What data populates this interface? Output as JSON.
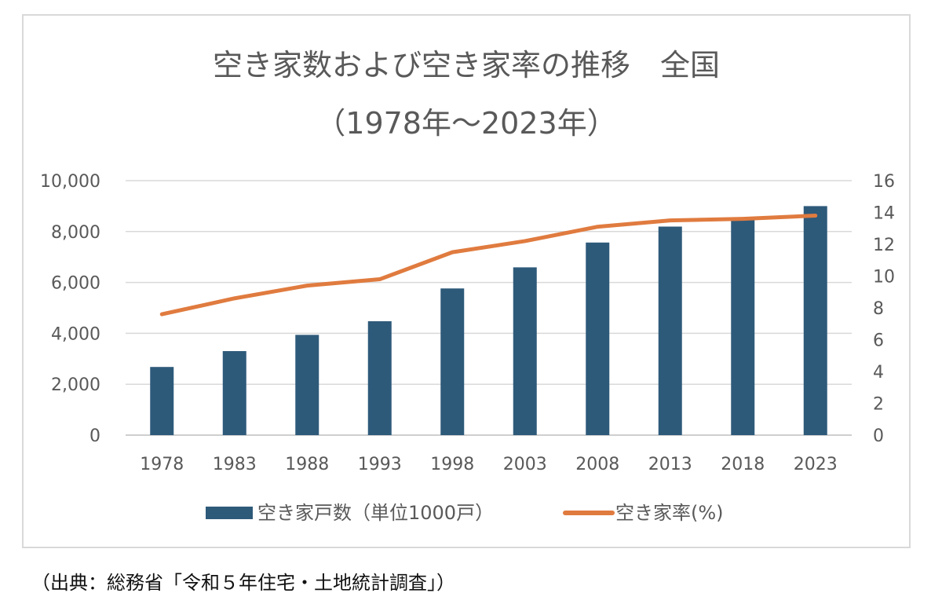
{
  "chart_data": {
    "type": "bar+line",
    "title": "空き家数および空き家率の推移　全国",
    "subtitle": "（1978年～2023年）",
    "categories": [
      "1978",
      "1983",
      "1988",
      "1993",
      "1998",
      "2003",
      "2008",
      "2013",
      "2018",
      "2023"
    ],
    "series": [
      {
        "name": "空き家戸数（単位1000戸）",
        "type": "bar",
        "axis": "left",
        "color": "#2e5a7a",
        "values": [
          2679,
          3302,
          3940,
          4476,
          5764,
          6593,
          7568,
          8195,
          8489,
          9000
        ]
      },
      {
        "name": "空き家率(%)",
        "type": "line",
        "axis": "right",
        "color": "#e07b3f",
        "values": [
          7.6,
          8.6,
          9.4,
          9.8,
          11.5,
          12.2,
          13.1,
          13.5,
          13.6,
          13.8
        ]
      }
    ],
    "y_left": {
      "lim": [
        0,
        10000
      ],
      "ticks": [
        "0",
        "2,000",
        "4,000",
        "6,000",
        "8,000",
        "10,000"
      ]
    },
    "y_right": {
      "lim": [
        0,
        16
      ],
      "ticks": [
        "0",
        "2",
        "4",
        "6",
        "8",
        "10",
        "12",
        "14",
        "16"
      ]
    },
    "grid": true,
    "legend": "bottom"
  },
  "source_note": "（出典：総務省「令和５年住宅・土地統計調査」）"
}
